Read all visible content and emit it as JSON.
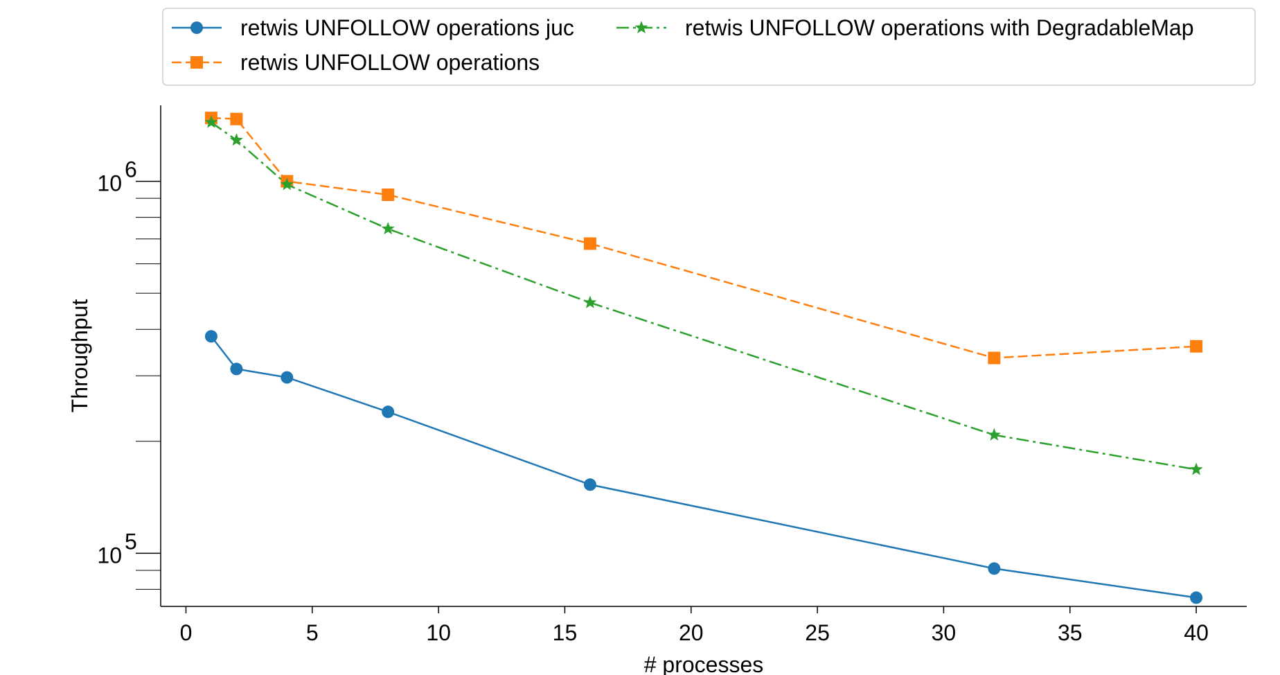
{
  "chart_data": {
    "type": "line",
    "xlabel": "# processes",
    "ylabel": "Throughput",
    "xlim": [
      -1,
      42
    ],
    "ylim": [
      72000,
      1600000
    ],
    "yscale": "log",
    "xticks": [
      0,
      5,
      10,
      15,
      20,
      25,
      30,
      35,
      40
    ],
    "x_tick_labels": [
      "0",
      "5",
      "10",
      "15",
      "20",
      "25",
      "30",
      "35",
      "40"
    ],
    "yticks_major": [
      100000,
      1000000
    ],
    "y_tick_labels": [
      {
        "base": "10",
        "exp": "5"
      },
      {
        "base": "10",
        "exp": "6"
      }
    ],
    "grid": false,
    "legend_position": "top",
    "x": [
      1,
      2,
      4,
      8,
      16,
      32,
      40
    ],
    "series": [
      {
        "name": "retwis UNFOLLOW operations juc",
        "color": "#1f77b4",
        "marker": "circle",
        "linestyle": "solid",
        "values": [
          383000,
          313000,
          297000,
          240000,
          153000,
          91000,
          76000
        ]
      },
      {
        "name": "retwis UNFOLLOW operations",
        "color": "#ff7f0e",
        "marker": "square",
        "linestyle": "dashed",
        "values": [
          1480000,
          1470000,
          1000000,
          920000,
          680000,
          335000,
          360000
        ]
      },
      {
        "name": "retwis UNFOLLOW operations with DegradableMap",
        "color": "#2ca02c",
        "marker": "star",
        "linestyle": "dashdot",
        "values": [
          1440000,
          1290000,
          980000,
          745000,
          472000,
          208000,
          168000
        ]
      }
    ]
  }
}
